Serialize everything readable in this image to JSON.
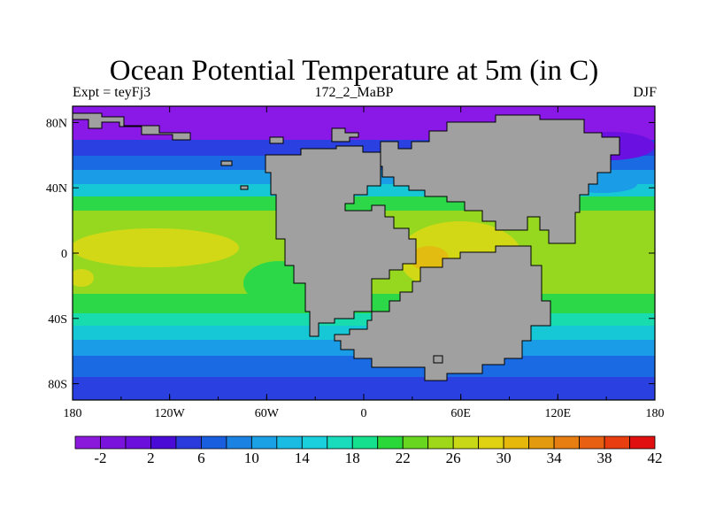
{
  "title": "Ocean Potential Temperature at 5m (in C)",
  "subtitle": {
    "left": "Expt = teyFj3",
    "center": "172_2_MaBP",
    "right": "DJF"
  },
  "axes": {
    "x_ticks": [
      "180",
      "120W",
      "60W",
      "0",
      "60E",
      "120E",
      "180"
    ],
    "y_ticks": [
      "80N",
      "40N",
      "0",
      "40S",
      "80S"
    ]
  },
  "colorbar": {
    "labels": [
      "-2",
      "2",
      "6",
      "10",
      "14",
      "18",
      "22",
      "26",
      "30",
      "34",
      "38",
      "42"
    ],
    "colors": [
      "#8a19dc",
      "#7a14dc",
      "#6a0fdc",
      "#4a0bd6",
      "#2b3adc",
      "#1a5ee0",
      "#1a82e2",
      "#1aa0e4",
      "#1abce4",
      "#1ad0dc",
      "#18dcbc",
      "#14e08e",
      "#2ad83a",
      "#68d61e",
      "#9ed818",
      "#c8d816",
      "#e0d210",
      "#e6b80c",
      "#e49a0e",
      "#e67e12",
      "#e86012",
      "#e83e10",
      "#e01010"
    ]
  },
  "map": {
    "land_color": "#a0a0a0",
    "colors": {
      "polar_deep": "#6a10e0",
      "polar": "#8a18e6",
      "cold_blue": "#2a40e0",
      "blue": "#1a6ae4",
      "cyan_blue": "#1a9ce6",
      "cyan": "#16c8d6",
      "teal": "#18dcae",
      "green": "#2cd848",
      "yellow_green": "#96d820",
      "yellow": "#d2d816",
      "warm": "#e2bc10",
      "hot": "#e49c12"
    }
  }
}
